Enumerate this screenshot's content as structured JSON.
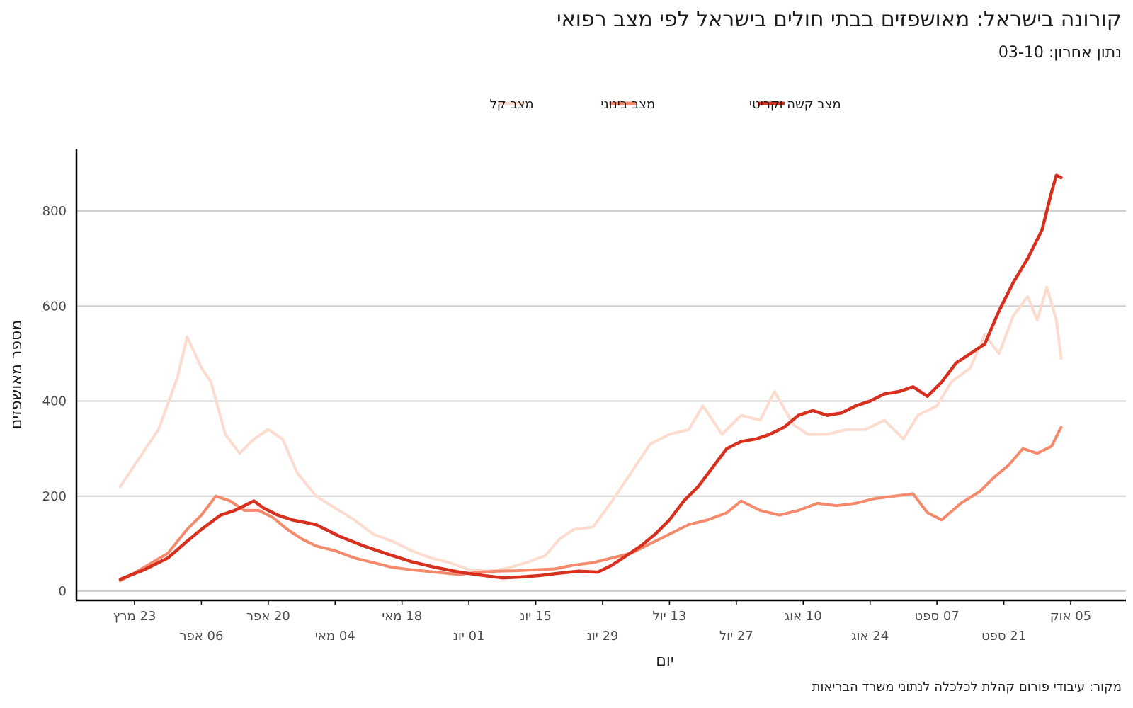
{
  "title": "קורונה בישראל: מאושפזים בבתי חולים בישראל לפי מצב רפואי",
  "subtitle": "נתון אחרון: 03-10",
  "caption": "מקור: עיבודי פורום קהלת לכלכלה לנתוני משרד הבריאות",
  "colors": {
    "severe": "#d7301f",
    "moderate": "#f4896b",
    "mild": "#fddcd0",
    "grid": "#d0d0d0",
    "axis": "#000000"
  },
  "chart_data": {
    "type": "line",
    "xlabel": "יום",
    "ylabel": "מספר מאושפזים",
    "ylim": [
      0,
      900
    ],
    "yticks": [
      0,
      200,
      400,
      600,
      800
    ],
    "grid": "horizontal",
    "legend_position": "top",
    "x_start": "2020-03-20",
    "x_end": "2020-10-03",
    "x_ticks": [
      {
        "date": "2020-03-23",
        "label": "23 מרץ",
        "row": 1
      },
      {
        "date": "2020-04-06",
        "label": "06 אפר",
        "row": 2
      },
      {
        "date": "2020-04-20",
        "label": "20 אפר",
        "row": 1
      },
      {
        "date": "2020-05-04",
        "label": "04 מאי",
        "row": 2
      },
      {
        "date": "2020-05-18",
        "label": "18 מאי",
        "row": 1
      },
      {
        "date": "2020-06-01",
        "label": "01 יונ",
        "row": 2
      },
      {
        "date": "2020-06-15",
        "label": "15 יונ",
        "row": 1
      },
      {
        "date": "2020-06-29",
        "label": "29 יונ",
        "row": 2
      },
      {
        "date": "2020-07-13",
        "label": "13 יול",
        "row": 1
      },
      {
        "date": "2020-07-27",
        "label": "27 יול",
        "row": 2
      },
      {
        "date": "2020-08-10",
        "label": "10 אוג",
        "row": 1
      },
      {
        "date": "2020-08-24",
        "label": "24 אוג",
        "row": 2
      },
      {
        "date": "2020-09-07",
        "label": "07 ספט",
        "row": 1
      },
      {
        "date": "2020-09-21",
        "label": "21 ספט",
        "row": 2
      },
      {
        "date": "2020-10-05",
        "label": "05 אוק",
        "row": 1
      }
    ],
    "series": [
      {
        "name": "מצב קשה וקריטי",
        "color_key": "severe",
        "points": [
          [
            "2020-03-20",
            25
          ],
          [
            "2020-03-25",
            45
          ],
          [
            "2020-03-30",
            70
          ],
          [
            "2020-04-03",
            105
          ],
          [
            "2020-04-06",
            130
          ],
          [
            "2020-04-10",
            160
          ],
          [
            "2020-04-13",
            170
          ],
          [
            "2020-04-15",
            180
          ],
          [
            "2020-04-17",
            190
          ],
          [
            "2020-04-19",
            175
          ],
          [
            "2020-04-22",
            160
          ],
          [
            "2020-04-25",
            150
          ],
          [
            "2020-04-30",
            140
          ],
          [
            "2020-05-05",
            115
          ],
          [
            "2020-05-10",
            95
          ],
          [
            "2020-05-15",
            78
          ],
          [
            "2020-05-20",
            62
          ],
          [
            "2020-05-25",
            50
          ],
          [
            "2020-05-30",
            40
          ],
          [
            "2020-06-04",
            33
          ],
          [
            "2020-06-08",
            28
          ],
          [
            "2020-06-12",
            30
          ],
          [
            "2020-06-16",
            33
          ],
          [
            "2020-06-20",
            38
          ],
          [
            "2020-06-24",
            42
          ],
          [
            "2020-06-28",
            40
          ],
          [
            "2020-07-01",
            55
          ],
          [
            "2020-07-04",
            75
          ],
          [
            "2020-07-07",
            95
          ],
          [
            "2020-07-10",
            120
          ],
          [
            "2020-07-13",
            150
          ],
          [
            "2020-07-16",
            190
          ],
          [
            "2020-07-19",
            220
          ],
          [
            "2020-07-22",
            260
          ],
          [
            "2020-07-25",
            300
          ],
          [
            "2020-07-28",
            315
          ],
          [
            "2020-07-31",
            320
          ],
          [
            "2020-08-03",
            330
          ],
          [
            "2020-08-06",
            345
          ],
          [
            "2020-08-09",
            370
          ],
          [
            "2020-08-12",
            380
          ],
          [
            "2020-08-15",
            370
          ],
          [
            "2020-08-18",
            375
          ],
          [
            "2020-08-21",
            390
          ],
          [
            "2020-08-24",
            400
          ],
          [
            "2020-08-27",
            415
          ],
          [
            "2020-08-30",
            420
          ],
          [
            "2020-09-02",
            430
          ],
          [
            "2020-09-05",
            410
          ],
          [
            "2020-09-08",
            440
          ],
          [
            "2020-09-11",
            480
          ],
          [
            "2020-09-14",
            500
          ],
          [
            "2020-09-17",
            520
          ],
          [
            "2020-09-20",
            590
          ],
          [
            "2020-09-23",
            650
          ],
          [
            "2020-09-26",
            700
          ],
          [
            "2020-09-29",
            760
          ],
          [
            "2020-10-01",
            840
          ],
          [
            "2020-10-02",
            875
          ],
          [
            "2020-10-03",
            870
          ]
        ]
      },
      {
        "name": "מצב בינוני",
        "color_key": "moderate",
        "points": [
          [
            "2020-03-20",
            22
          ],
          [
            "2020-03-25",
            50
          ],
          [
            "2020-03-30",
            80
          ],
          [
            "2020-04-03",
            130
          ],
          [
            "2020-04-06",
            160
          ],
          [
            "2020-04-09",
            200
          ],
          [
            "2020-04-12",
            190
          ],
          [
            "2020-04-15",
            170
          ],
          [
            "2020-04-18",
            170
          ],
          [
            "2020-04-21",
            155
          ],
          [
            "2020-04-24",
            130
          ],
          [
            "2020-04-27",
            110
          ],
          [
            "2020-04-30",
            95
          ],
          [
            "2020-05-04",
            85
          ],
          [
            "2020-05-08",
            70
          ],
          [
            "2020-05-12",
            60
          ],
          [
            "2020-05-16",
            50
          ],
          [
            "2020-05-20",
            45
          ],
          [
            "2020-05-25",
            40
          ],
          [
            "2020-05-30",
            35
          ],
          [
            "2020-06-03",
            40
          ],
          [
            "2020-06-07",
            42
          ],
          [
            "2020-06-11",
            43
          ],
          [
            "2020-06-15",
            45
          ],
          [
            "2020-06-19",
            47
          ],
          [
            "2020-06-23",
            55
          ],
          [
            "2020-06-27",
            60
          ],
          [
            "2020-07-01",
            70
          ],
          [
            "2020-07-05",
            80
          ],
          [
            "2020-07-09",
            100
          ],
          [
            "2020-07-13",
            120
          ],
          [
            "2020-07-17",
            140
          ],
          [
            "2020-07-21",
            150
          ],
          [
            "2020-07-25",
            165
          ],
          [
            "2020-07-28",
            190
          ],
          [
            "2020-08-01",
            170
          ],
          [
            "2020-08-05",
            160
          ],
          [
            "2020-08-09",
            170
          ],
          [
            "2020-08-13",
            185
          ],
          [
            "2020-08-17",
            180
          ],
          [
            "2020-08-21",
            185
          ],
          [
            "2020-08-25",
            195
          ],
          [
            "2020-08-29",
            200
          ],
          [
            "2020-09-02",
            205
          ],
          [
            "2020-09-05",
            165
          ],
          [
            "2020-09-08",
            150
          ],
          [
            "2020-09-12",
            185
          ],
          [
            "2020-09-16",
            210
          ],
          [
            "2020-09-19",
            240
          ],
          [
            "2020-09-22",
            265
          ],
          [
            "2020-09-25",
            300
          ],
          [
            "2020-09-28",
            290
          ],
          [
            "2020-10-01",
            305
          ],
          [
            "2020-10-03",
            345
          ]
        ]
      },
      {
        "name": "מצב קל",
        "color_key": "mild",
        "points": [
          [
            "2020-03-20",
            220
          ],
          [
            "2020-03-24",
            280
          ],
          [
            "2020-03-28",
            340
          ],
          [
            "2020-04-01",
            450
          ],
          [
            "2020-04-03",
            535
          ],
          [
            "2020-04-06",
            470
          ],
          [
            "2020-04-08",
            440
          ],
          [
            "2020-04-11",
            330
          ],
          [
            "2020-04-14",
            290
          ],
          [
            "2020-04-17",
            320
          ],
          [
            "2020-04-20",
            340
          ],
          [
            "2020-04-23",
            320
          ],
          [
            "2020-04-26",
            250
          ],
          [
            "2020-04-30",
            200
          ],
          [
            "2020-05-04",
            175
          ],
          [
            "2020-05-08",
            150
          ],
          [
            "2020-05-12",
            120
          ],
          [
            "2020-05-16",
            105
          ],
          [
            "2020-05-20",
            85
          ],
          [
            "2020-05-24",
            70
          ],
          [
            "2020-05-28",
            60
          ],
          [
            "2020-06-01",
            45
          ],
          [
            "2020-06-05",
            42
          ],
          [
            "2020-06-09",
            48
          ],
          [
            "2020-06-13",
            60
          ],
          [
            "2020-06-17",
            75
          ],
          [
            "2020-06-20",
            110
          ],
          [
            "2020-06-23",
            130
          ],
          [
            "2020-06-27",
            135
          ],
          [
            "2020-07-01",
            190
          ],
          [
            "2020-07-05",
            250
          ],
          [
            "2020-07-09",
            310
          ],
          [
            "2020-07-13",
            330
          ],
          [
            "2020-07-17",
            340
          ],
          [
            "2020-07-20",
            390
          ],
          [
            "2020-07-24",
            330
          ],
          [
            "2020-07-28",
            370
          ],
          [
            "2020-08-01",
            360
          ],
          [
            "2020-08-04",
            420
          ],
          [
            "2020-08-08",
            350
          ],
          [
            "2020-08-11",
            330
          ],
          [
            "2020-08-15",
            330
          ],
          [
            "2020-08-19",
            340
          ],
          [
            "2020-08-23",
            340
          ],
          [
            "2020-08-27",
            360
          ],
          [
            "2020-08-31",
            320
          ],
          [
            "2020-09-03",
            370
          ],
          [
            "2020-09-07",
            390
          ],
          [
            "2020-09-10",
            440
          ],
          [
            "2020-09-14",
            470
          ],
          [
            "2020-09-17",
            540
          ],
          [
            "2020-09-20",
            500
          ],
          [
            "2020-09-23",
            580
          ],
          [
            "2020-09-26",
            620
          ],
          [
            "2020-09-28",
            570
          ],
          [
            "2020-09-30",
            640
          ],
          [
            "2020-10-02",
            570
          ],
          [
            "2020-10-03",
            490
          ]
        ]
      }
    ]
  }
}
